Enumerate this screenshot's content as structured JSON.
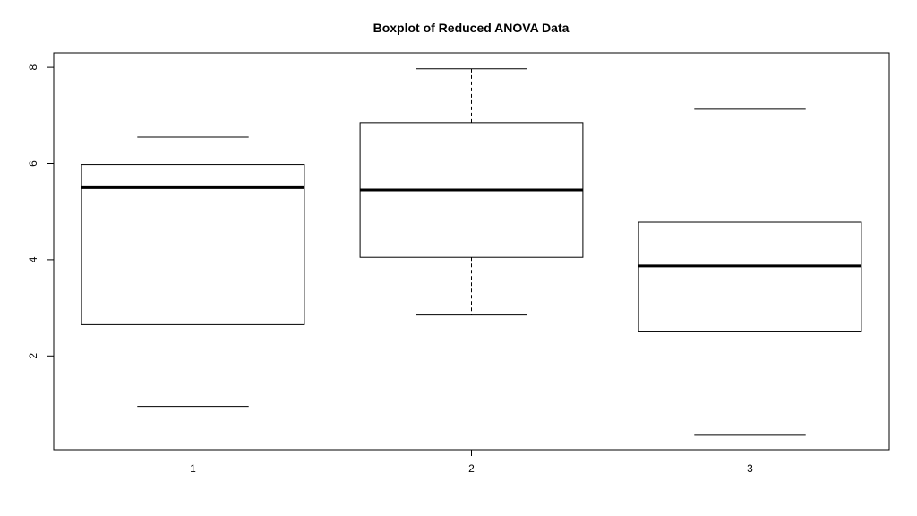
{
  "chart_data": {
    "type": "boxplot",
    "title": "Boxplot of Reduced ANOVA Data",
    "xlabel": "",
    "ylabel": "",
    "categories": [
      "1",
      "2",
      "3"
    ],
    "boxes": [
      {
        "group": "1",
        "min": 0.95,
        "q1": 2.65,
        "median": 5.5,
        "q3": 5.98,
        "max": 6.55
      },
      {
        "group": "2",
        "min": 2.85,
        "q1": 4.05,
        "median": 5.45,
        "q3": 6.85,
        "max": 7.97
      },
      {
        "group": "3",
        "min": 0.35,
        "q1": 2.5,
        "median": 3.87,
        "q3": 4.78,
        "max": 7.13
      }
    ],
    "y_ticks": [
      "2",
      "4",
      "6",
      "8"
    ],
    "x_ticks": [
      "1",
      "2",
      "3"
    ],
    "ylim": [
      0.05,
      8.3
    ],
    "xlim": [
      0.5,
      3.5
    ],
    "grid": false,
    "legend": "none"
  }
}
